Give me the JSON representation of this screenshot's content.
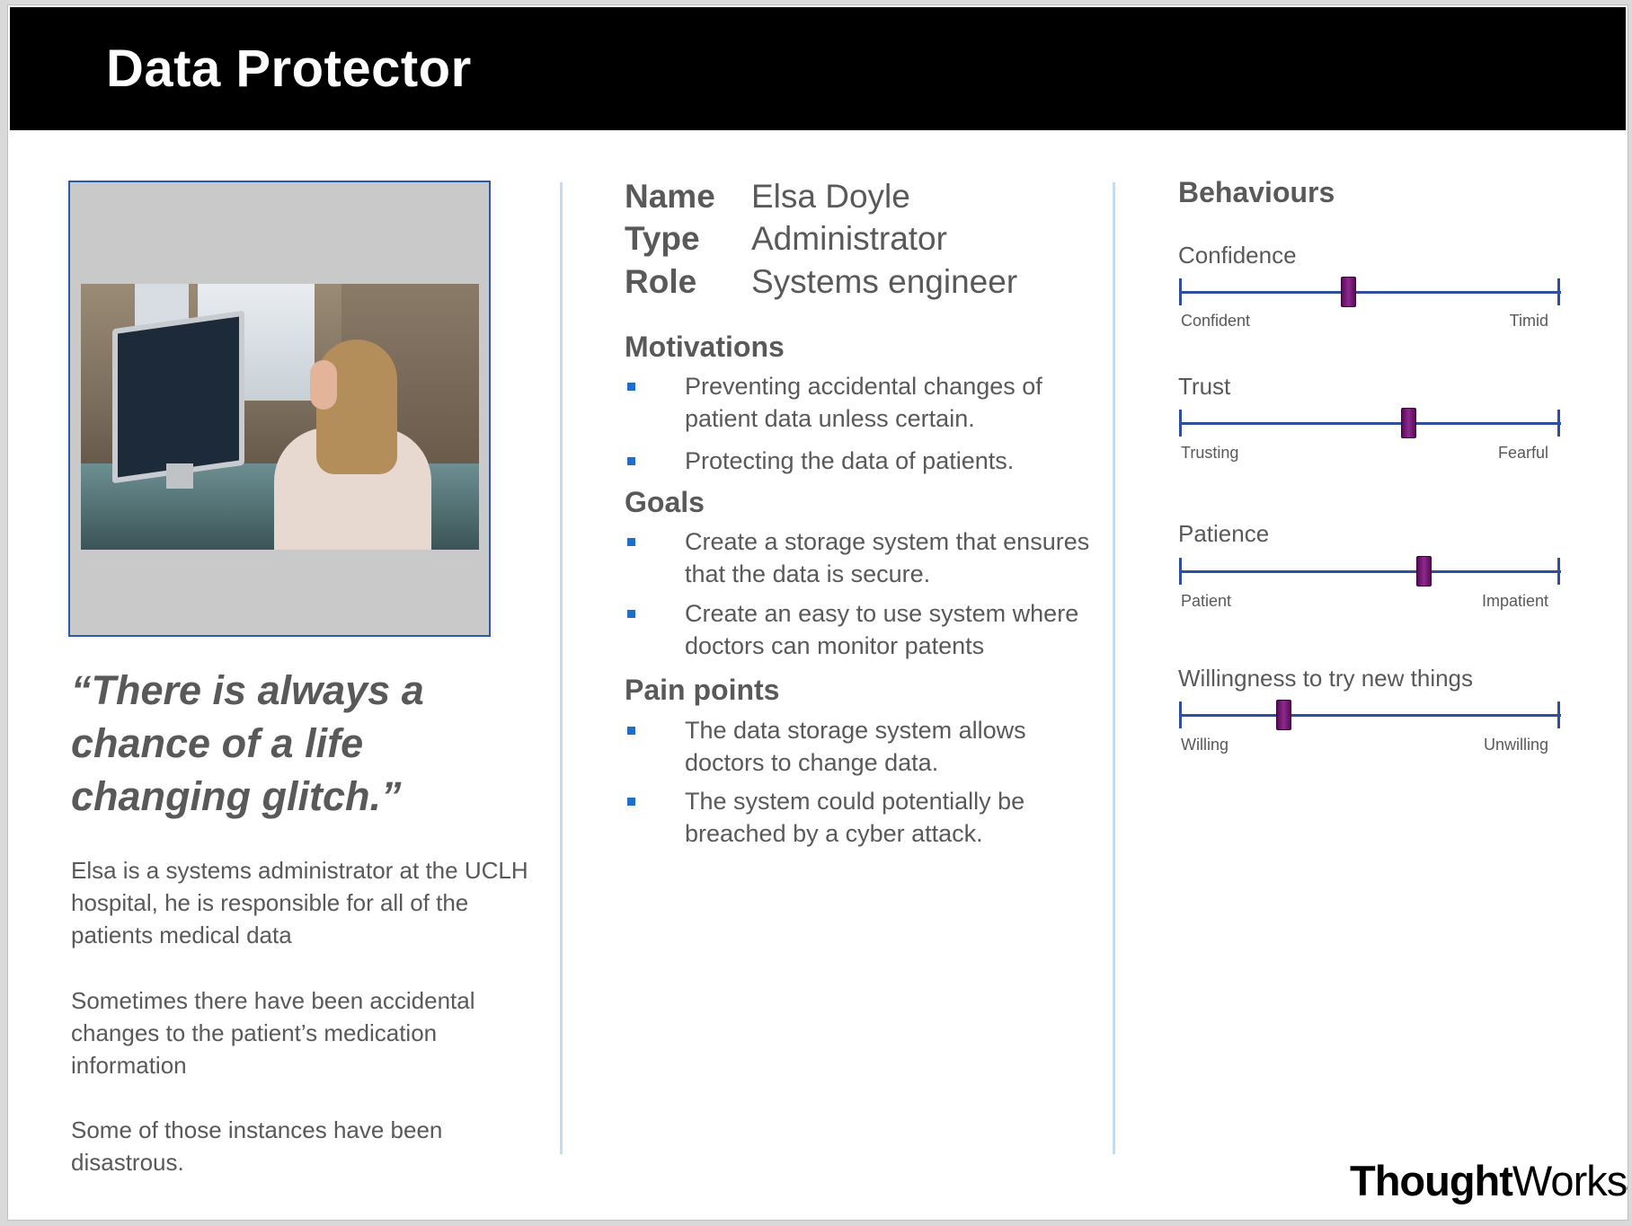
{
  "header": {
    "title": "Data Protector"
  },
  "persona": {
    "quote": "“There is always a chance of a life changing glitch.”",
    "bio": [
      "Elsa is a systems administrator at the UCLH hospital, he is responsible for all of the patients medical data",
      "Sometimes there have been accidental changes to the patient’s medication information",
      "Some of those instances have been disastrous."
    ]
  },
  "info": {
    "name_label": "Name",
    "name_value": "Elsa Doyle",
    "type_label": "Type",
    "type_value": "Administrator",
    "role_label": "Role",
    "role_value": "Systems engineer"
  },
  "motivations": {
    "title": "Motivations",
    "items": [
      "Preventing accidental changes of patient data unless certain.",
      "Protecting the data of patients."
    ]
  },
  "goals": {
    "title": "Goals",
    "items": [
      "Create a storage system that ensures that the data is secure.",
      "Create an easy to use system where doctors can monitor patents"
    ]
  },
  "pain_points": {
    "title": "Pain points",
    "items": [
      "The data storage system allows doctors to change data.",
      "The system could potentially be breached by a cyber attack."
    ]
  },
  "behaviours": {
    "title": "Behaviours",
    "sliders": [
      {
        "label": "Confidence",
        "left": "Confident",
        "right": "Timid",
        "value": 0.44
      },
      {
        "label": "Trust",
        "left": "Trusting",
        "right": "Fearful",
        "value": 0.6
      },
      {
        "label": "Patience",
        "left": "Patient",
        "right": "Impatient",
        "value": 0.64
      },
      {
        "label": "Willingness to try new things",
        "left": "Willing",
        "right": "Unwilling",
        "value": 0.27
      }
    ]
  },
  "logo": {
    "bold": "Thought",
    "regular": "Works",
    "mark": "®"
  },
  "colors": {
    "accent": "#2d4f9e",
    "bullet": "#1f6fc6",
    "thumb": "#7a1a7a",
    "text": "#595959"
  }
}
